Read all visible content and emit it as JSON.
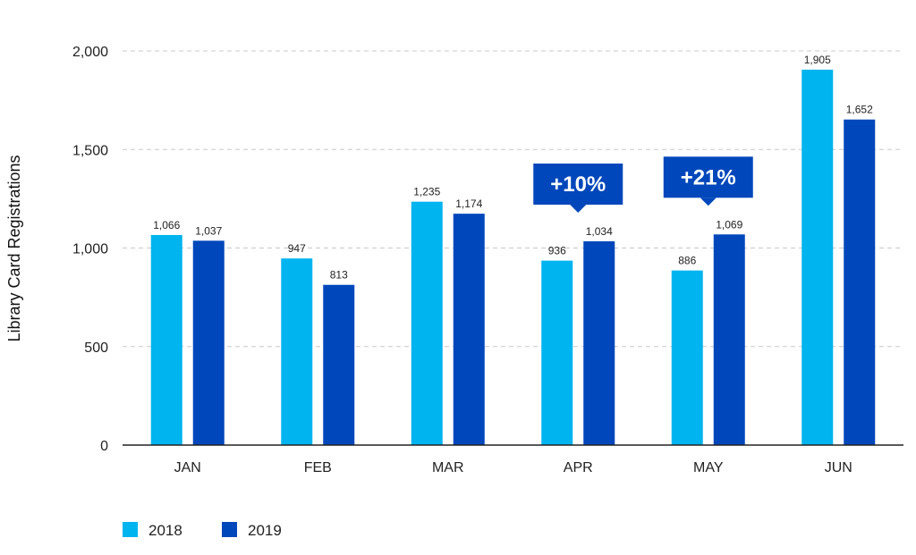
{
  "chart_data": {
    "type": "bar",
    "title": "",
    "xlabel": "",
    "ylabel": "Library Card Registrations",
    "categories": [
      "JAN",
      "FEB",
      "MAR",
      "APR",
      "MAY",
      "JUN"
    ],
    "series": [
      {
        "name": "2018",
        "color": "#00b4ef",
        "values": [
          1066,
          947,
          1235,
          936,
          886,
          1905
        ],
        "value_labels": [
          "1,066",
          "947",
          "1,235",
          "936",
          "886",
          "1,905"
        ]
      },
      {
        "name": "2019",
        "color": "#0047bb",
        "values": [
          1037,
          813,
          1174,
          1034,
          1069,
          1652
        ],
        "value_labels": [
          "1,037",
          "813",
          "1,174",
          "1,034",
          "1,069",
          "1,652"
        ]
      }
    ],
    "ylim": [
      0,
      2000
    ],
    "yticks": [
      0,
      500,
      1000,
      1500,
      2000
    ],
    "ytick_labels": [
      "0",
      "500",
      "1,000",
      "1,500",
      "2,000"
    ],
    "grid": true,
    "legend": "bottom-left",
    "annotations": [
      {
        "text": "+10%",
        "category": "APR",
        "color": "#0047bb"
      },
      {
        "text": "+21%",
        "category": "MAY",
        "color": "#0047bb"
      }
    ]
  }
}
